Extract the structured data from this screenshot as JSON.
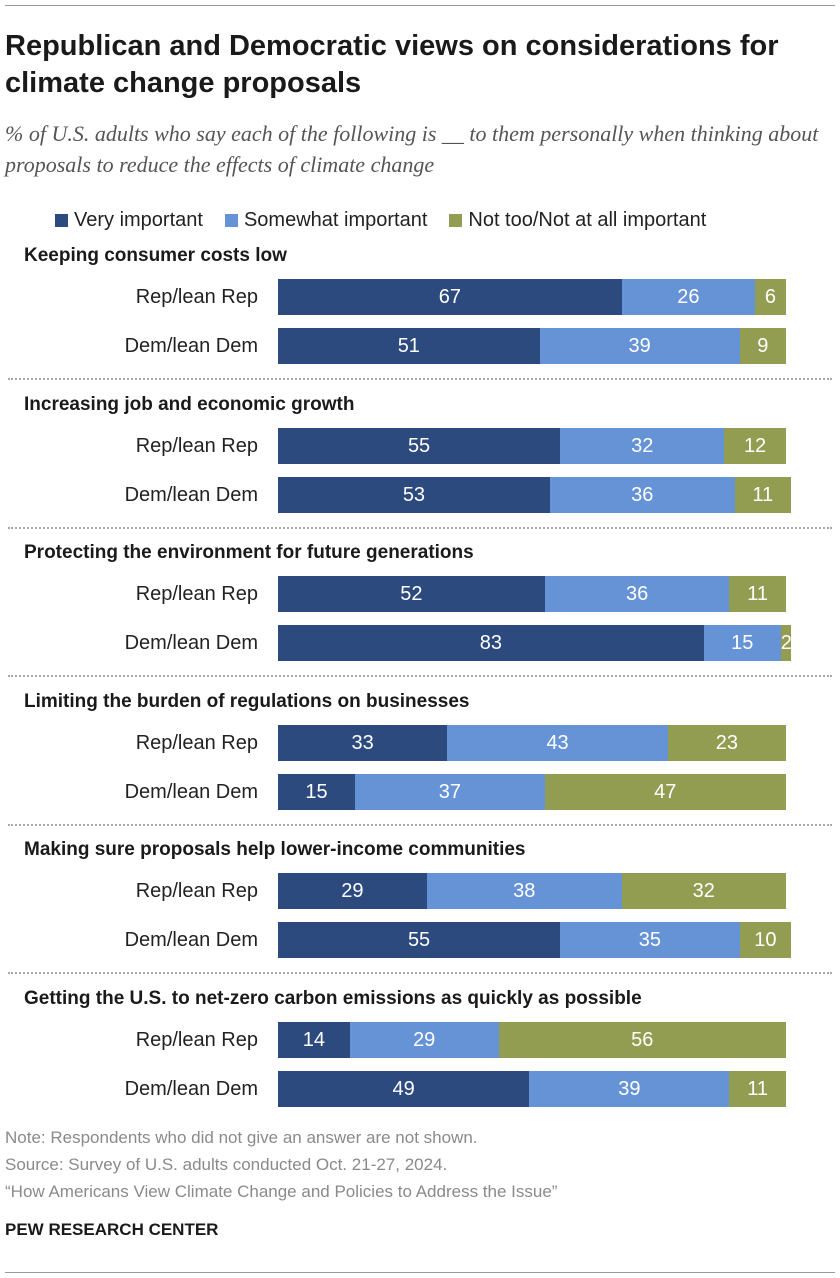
{
  "header": {
    "title": "Republican and Democratic views on considerations for climate change proposals",
    "subtitle": "% of U.S. adults who say each of the following is __ to them personally when thinking about proposals to reduce the effects of climate change"
  },
  "legend": [
    {
      "label": "Very important",
      "color": "#2d4a7e"
    },
    {
      "label": "Somewhat important",
      "color": "#6593d6"
    },
    {
      "label": "Not too/Not at all important",
      "color": "#939d52"
    }
  ],
  "chart_data": {
    "type": "bar",
    "orientation": "horizontal",
    "stacked": true,
    "series_names": [
      "Very important",
      "Somewhat important",
      "Not too/Not at all important"
    ],
    "colors": [
      "#2d4a7e",
      "#6593d6",
      "#939d52"
    ],
    "groups": [
      {
        "title": "Keeping consumer costs low",
        "rows": [
          {
            "label": "Rep/lean Rep",
            "values": [
              67,
              26,
              6
            ]
          },
          {
            "label": "Dem/lean Dem",
            "values": [
              51,
              39,
              9
            ]
          }
        ]
      },
      {
        "title": "Increasing job and economic growth",
        "rows": [
          {
            "label": "Rep/lean Rep",
            "values": [
              55,
              32,
              12
            ]
          },
          {
            "label": "Dem/lean Dem",
            "values": [
              53,
              36,
              11
            ]
          }
        ]
      },
      {
        "title": "Protecting the environment for future generations",
        "rows": [
          {
            "label": "Rep/lean Rep",
            "values": [
              52,
              36,
              11
            ]
          },
          {
            "label": "Dem/lean Dem",
            "values": [
              83,
              15,
              2
            ]
          }
        ]
      },
      {
        "title": "Limiting the burden of regulations on businesses",
        "rows": [
          {
            "label": "Rep/lean Rep",
            "values": [
              33,
              43,
              23
            ]
          },
          {
            "label": "Dem/lean Dem",
            "values": [
              15,
              37,
              47
            ]
          }
        ]
      },
      {
        "title": "Making sure proposals help lower-income communities",
        "rows": [
          {
            "label": "Rep/lean Rep",
            "values": [
              29,
              38,
              32
            ]
          },
          {
            "label": "Dem/lean Dem",
            "values": [
              55,
              35,
              10
            ]
          }
        ]
      },
      {
        "title": "Getting the U.S. to net-zero carbon emissions as quickly as possible",
        "rows": [
          {
            "label": "Rep/lean Rep",
            "values": [
              14,
              29,
              56
            ]
          },
          {
            "label": "Dem/lean Dem",
            "values": [
              49,
              39,
              11
            ]
          }
        ]
      }
    ]
  },
  "footer": {
    "note": "Note: Respondents who did not give an answer are not shown.",
    "source": "Source: Survey of U.S. adults conducted Oct. 21-27, 2024.",
    "report": "“How Americans View Climate Change and Policies to Address the Issue”",
    "brand": "PEW RESEARCH CENTER"
  }
}
